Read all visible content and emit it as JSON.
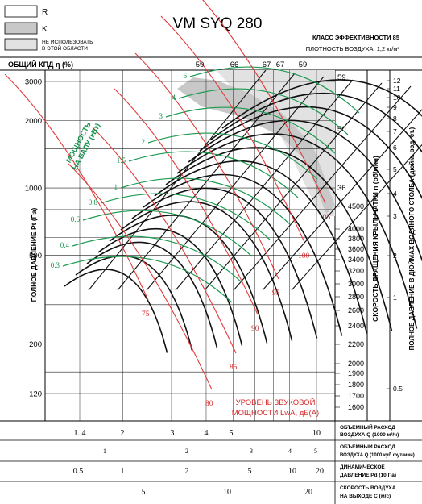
{
  "legend": {
    "items": [
      {
        "label": "R",
        "fill": "#ffffff"
      },
      {
        "label": "K",
        "fill": "#c8c8c8"
      },
      {
        "label": "НЕ ИСПОЛЬЗОВАТЬ В ЭТОЙ ОБЛАСТИ",
        "line1": "НЕ ИСПОЛЬЗОВАТЬ",
        "line2": "В ЭТОЙ ОБЛАСТИ",
        "fill": "#e2e2e2"
      }
    ]
  },
  "header": {
    "title": "VM SYQ 280",
    "efficiency_class": "КЛАСС ЭФФЕКТИВНОСТИ 85",
    "air_density": "ПЛОТНОСТЬ ВОЗДУХА: 1,2 кг/м³",
    "total_efficiency_label": "ОБЩИЙ КПД η (%)"
  },
  "labels": {
    "pressure_axis": "ПОЛНОЕ ДАВЛЕНИЕ Pt (Па)",
    "speed_axis": "СКОРОСТЬ ВРАЩЕНИЯ КРЫЛЬЧАТКИ n (об/мин)",
    "water_axis": "ПОЛНОЕ ДАВЛЕНИЕ В ДЮЙМАХ ВОДЯНОГО СТОЛБА (дюйм. вод. ст.)",
    "shaft_power_line1": "МОЩНОСТЬ",
    "shaft_power_line2": "НА ВАЛУ (кВт)",
    "sound_line1": "УРОВЕНЬ ЗВУКОВОЙ",
    "sound_line2": "МОЩНОСТИ LwA, дБ(А)"
  },
  "colors": {
    "speed_curve": "#111111",
    "power_curve": "#1a9a50",
    "sound_curve": "#e03a3a",
    "power_text": "#12904a",
    "sound_text": "#d42a2a",
    "unusable_zone": "#e2e2e2",
    "k_zone": "#c8c8c8"
  },
  "chart_data": {
    "type": "line",
    "y_axis": {
      "label": "ПОЛНОЕ ДАВЛЕНИЕ Pt (Па)",
      "scale": "log",
      "ticks": [
        3000,
        2000,
        1000,
        500,
        200,
        120
      ]
    },
    "x_axis": {
      "label": "ОБЪЕМНЫЙ РАСХОД ВОЗДУХА Q (1000 м³/ч)",
      "scale": "log",
      "ticks": [
        "1.4",
        "2",
        "3",
        "4",
        "5",
        "10"
      ]
    },
    "efficiency_ticks": [
      "59",
      "66",
      "67",
      "67",
      "59"
    ],
    "efficiency_side_ticks": [
      "59",
      "50",
      "36"
    ],
    "shaft_power_kw": [
      "0.3",
      "0.4",
      "0.6",
      "0.8",
      "1",
      "1.5",
      "2",
      "3",
      "4",
      "6"
    ],
    "sound_power_dba": [
      "75",
      "80",
      "85",
      "90",
      "95",
      "100",
      "105"
    ],
    "speed_rpm_ticks": [
      "4500",
      "4000",
      "3800",
      "3600",
      "3400",
      "3200",
      "3000",
      "2800",
      "2600",
      "2400",
      "2200",
      "2000",
      "1900",
      "1800",
      "1700",
      "1600"
    ],
    "water_inch_ticks": [
      "12",
      "11",
      "10",
      "9",
      "8",
      "7",
      "6",
      "5",
      "4",
      "3",
      "2",
      "1",
      "0.5"
    ],
    "bottom_scales": [
      {
        "label1": "ОБЪЕМНЫЙ РАСХОД",
        "label2": "ВОЗДУХА Q (1000 м³/ч)",
        "ticks": [
          "1. 4",
          "2",
          "3",
          "4",
          "5",
          "10"
        ]
      },
      {
        "label1": "ОБЪЕМНЫЙ РАСХОД",
        "label2": "ВОЗДУХА Q (1000 куб.фут/мин)",
        "ticks": [
          "1",
          "2",
          "3",
          "4",
          "5"
        ]
      },
      {
        "label1": "ДИНАМИЧЕСКОЕ",
        "label2": "ДАВЛЕНИЕ Pd (10 Па)",
        "ticks": [
          "0.5",
          "1",
          "2",
          "5",
          "10",
          "20"
        ]
      },
      {
        "label1": "СКОРОСТЬ ВОЗДУХА",
        "label2": "НА ВЫХОДЕ C (м/с)",
        "ticks": [
          "5",
          "10",
          "20"
        ]
      }
    ]
  }
}
